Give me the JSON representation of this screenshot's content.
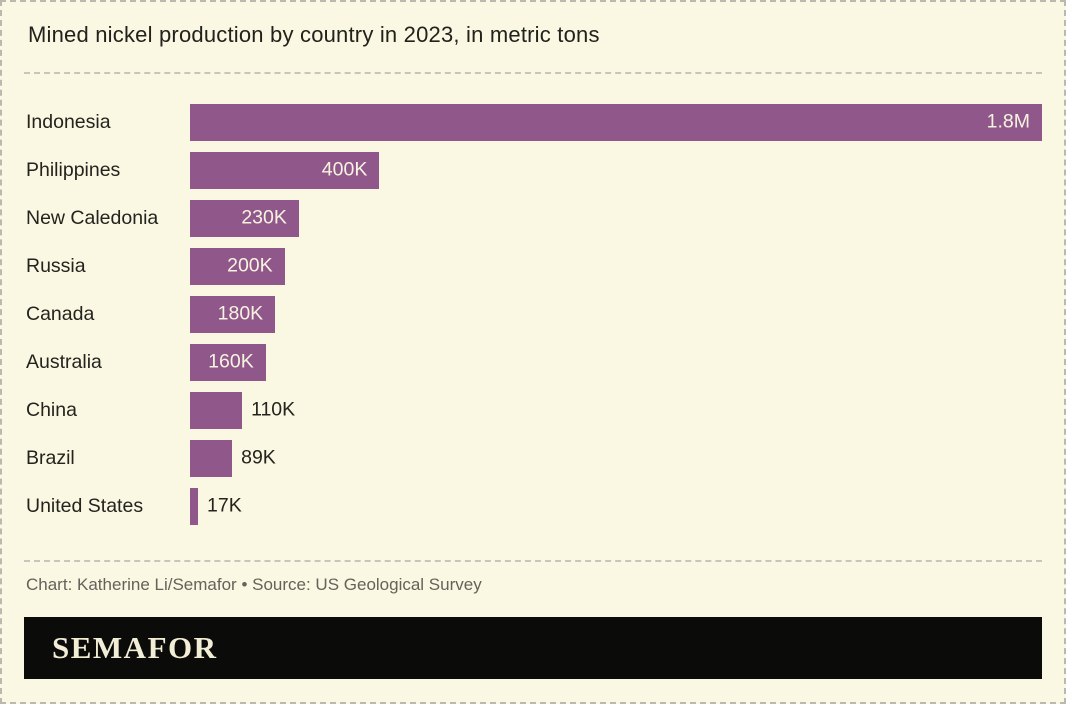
{
  "title": "Mined nickel production by country in 2023, in metric tons",
  "chart_data": {
    "type": "bar",
    "orientation": "horizontal",
    "title": "Mined nickel production by country in 2023, in metric tons",
    "unit": "metric tons",
    "categories": [
      "Indonesia",
      "Philippines",
      "New Caledonia",
      "Russia",
      "Canada",
      "Australia",
      "China",
      "Brazil",
      "United States"
    ],
    "values": [
      1800000,
      400000,
      230000,
      200000,
      180000,
      160000,
      110000,
      89000,
      17000
    ],
    "value_labels": [
      "1.8M",
      "400K",
      "230K",
      "200K",
      "180K",
      "160K",
      "110K",
      "89K",
      "17K"
    ],
    "xlim": [
      0,
      1800000
    ],
    "grid": false,
    "legend": false,
    "bar_color": "#90578b"
  },
  "footer": {
    "credit": "Chart: Katherine Li/Semafor • Source: US Geological Survey",
    "logo_text": "SEMAFOR"
  },
  "colors": {
    "background": "#faf7e2",
    "bar": "#90578b",
    "label_text": "#24241e",
    "value_inside_text": "#f7f3e0",
    "credit_text": "#63635b",
    "logo_background": "#0b0b09",
    "logo_text": "#f2edd5",
    "dashed_line": "#c6c6bc"
  }
}
